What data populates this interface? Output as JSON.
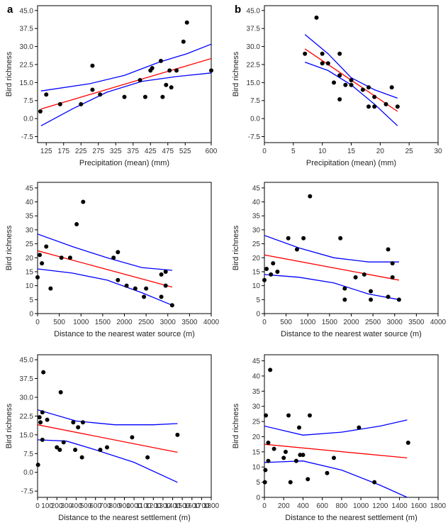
{
  "colors": {
    "fit": "#ff0000",
    "ci": "#0000ff",
    "points": "#000000",
    "frame": "#000000"
  },
  "chart_data": [
    {
      "panel_label": "a",
      "type": "scatter",
      "xlabel": "Precipitation (mean) (mm)",
      "ylabel": "Bird richness",
      "xlim": [
        100,
        600
      ],
      "ylim": [
        -10,
        47
      ],
      "xticks": [
        125,
        175,
        225,
        275,
        325,
        375,
        425,
        475,
        525,
        600
      ],
      "xtick_labels": [
        "125",
        "175",
        "225",
        "275",
        "325",
        "375",
        "425",
        "475",
        "525",
        "600"
      ],
      "yticks": [
        -7.5,
        0,
        7.5,
        15,
        22.5,
        30,
        37.5,
        45
      ],
      "ytick_labels": [
        "-7.5",
        "0.0",
        "7.5",
        "15.0",
        "22.5",
        "30.0",
        "37.5",
        "45.0"
      ],
      "points": [
        [
          108,
          3
        ],
        [
          125,
          10
        ],
        [
          165,
          6
        ],
        [
          225,
          6
        ],
        [
          258,
          22
        ],
        [
          258,
          12
        ],
        [
          280,
          10
        ],
        [
          350,
          9
        ],
        [
          395,
          16
        ],
        [
          410,
          9
        ],
        [
          425,
          20
        ],
        [
          430,
          21
        ],
        [
          455,
          24
        ],
        [
          460,
          9
        ],
        [
          470,
          14
        ],
        [
          485,
          13
        ],
        [
          480,
          20
        ],
        [
          500,
          20
        ],
        [
          520,
          32
        ],
        [
          530,
          40
        ],
        [
          600,
          20
        ]
      ],
      "fit": [
        [
          110,
          4
        ],
        [
          600,
          25
        ]
      ],
      "ci_upper": [
        [
          110,
          11.5
        ],
        [
          250,
          14.5
        ],
        [
          350,
          18
        ],
        [
          450,
          23.5
        ],
        [
          530,
          27
        ],
        [
          600,
          31
        ]
      ],
      "ci_lower": [
        [
          110,
          -3
        ],
        [
          200,
          4
        ],
        [
          300,
          11
        ],
        [
          400,
          15.5
        ],
        [
          500,
          17.5
        ],
        [
          600,
          19
        ]
      ]
    },
    {
      "panel_label": "b",
      "type": "scatter",
      "xlabel": "Precipitation (mean) (mm)",
      "ylabel": "Bird richness",
      "xlim": [
        0,
        30
      ],
      "ylim": [
        -10,
        47
      ],
      "xticks": [
        0,
        5,
        10,
        15,
        20,
        25,
        30
      ],
      "xtick_labels": [
        "0",
        "5",
        "10",
        "15",
        "20",
        "25",
        "30"
      ],
      "yticks": [
        -7.5,
        0,
        7.5,
        15,
        22.5,
        30,
        37.5,
        45
      ],
      "ytick_labels": [
        "-7.5",
        "0.0",
        "7.5",
        "15.0",
        "22.5",
        "30.0",
        "37.5",
        "45.0"
      ],
      "points": [
        [
          7,
          27
        ],
        [
          9,
          42
        ],
        [
          10,
          27
        ],
        [
          10,
          23
        ],
        [
          11,
          23
        ],
        [
          12,
          15
        ],
        [
          13,
          27
        ],
        [
          13,
          18
        ],
        [
          13,
          8
        ],
        [
          14,
          14
        ],
        [
          15,
          16
        ],
        [
          15,
          14
        ],
        [
          17,
          12
        ],
        [
          18,
          13
        ],
        [
          18,
          5
        ],
        [
          19,
          9
        ],
        [
          19,
          5
        ],
        [
          21,
          6
        ],
        [
          22,
          13
        ],
        [
          23,
          5
        ]
      ],
      "fit": [
        [
          7,
          29
        ],
        [
          23,
          3
        ]
      ],
      "ci_upper": [
        [
          7,
          35
        ],
        [
          11,
          27
        ],
        [
          15,
          17
        ],
        [
          19,
          12
        ],
        [
          23,
          8.5
        ]
      ],
      "ci_lower": [
        [
          7,
          23.5
        ],
        [
          11,
          20
        ],
        [
          15,
          14
        ],
        [
          19,
          6
        ],
        [
          23,
          -3
        ]
      ]
    },
    {
      "panel_label": "",
      "type": "scatter",
      "xlabel": "Distance to the nearest water source (m)",
      "ylabel": "Bird richness",
      "xlim": [
        0,
        4000
      ],
      "ylim": [
        0,
        47
      ],
      "xticks": [
        0,
        500,
        1000,
        1500,
        2000,
        2500,
        3000,
        3500,
        4000
      ],
      "xtick_labels": [
        "0",
        "500",
        "1000",
        "1500",
        "2000",
        "2500",
        "3000",
        "3500",
        "4000"
      ],
      "yticks": [
        0,
        5,
        10,
        15,
        20,
        25,
        30,
        35,
        40,
        45
      ],
      "ytick_labels": [
        "0",
        "5",
        "10",
        "15",
        "20",
        "25",
        "30",
        "35",
        "40",
        "45"
      ],
      "points": [
        [
          0,
          13
        ],
        [
          50,
          21
        ],
        [
          100,
          18
        ],
        [
          200,
          24
        ],
        [
          300,
          9
        ],
        [
          550,
          20
        ],
        [
          750,
          20
        ],
        [
          900,
          32
        ],
        [
          1050,
          40
        ],
        [
          1750,
          20
        ],
        [
          1850,
          22
        ],
        [
          1850,
          12
        ],
        [
          2050,
          10
        ],
        [
          2250,
          9
        ],
        [
          2500,
          9
        ],
        [
          2450,
          6
        ],
        [
          2850,
          6
        ],
        [
          2850,
          14
        ],
        [
          2950,
          15
        ],
        [
          2950,
          10
        ],
        [
          3100,
          3
        ]
      ],
      "fit": [
        [
          0,
          22.5
        ],
        [
          3100,
          9.5
        ]
      ],
      "ci_upper": [
        [
          0,
          28.5
        ],
        [
          800,
          24
        ],
        [
          1600,
          20
        ],
        [
          2400,
          16.5
        ],
        [
          3100,
          15.5
        ]
      ],
      "ci_lower": [
        [
          0,
          16
        ],
        [
          800,
          14.5
        ],
        [
          1600,
          12
        ],
        [
          2400,
          7.5
        ],
        [
          3100,
          3
        ]
      ]
    },
    {
      "panel_label": "",
      "type": "scatter",
      "xlabel": "Distance to the nearest water source (m)",
      "ylabel": "Bird richness",
      "xlim": [
        0,
        4000
      ],
      "ylim": [
        0,
        47
      ],
      "xticks": [
        0,
        500,
        1000,
        1500,
        2000,
        2500,
        3000,
        3500,
        4000
      ],
      "xtick_labels": [
        "0",
        "500",
        "1000",
        "1500",
        "2000",
        "2500",
        "3000",
        "3500",
        "4000"
      ],
      "yticks": [
        0,
        5,
        10,
        15,
        20,
        25,
        30,
        35,
        40,
        45
      ],
      "ytick_labels": [
        "0",
        "5",
        "10",
        "15",
        "20",
        "25",
        "30",
        "35",
        "40",
        "45"
      ],
      "points": [
        [
          0,
          12
        ],
        [
          50,
          16
        ],
        [
          150,
          14
        ],
        [
          200,
          18
        ],
        [
          300,
          15
        ],
        [
          550,
          27
        ],
        [
          750,
          23
        ],
        [
          900,
          27
        ],
        [
          1050,
          42
        ],
        [
          1750,
          27
        ],
        [
          1850,
          5
        ],
        [
          1850,
          9
        ],
        [
          2100,
          13
        ],
        [
          2300,
          14
        ],
        [
          2450,
          5
        ],
        [
          2450,
          8
        ],
        [
          2850,
          6
        ],
        [
          2850,
          23
        ],
        [
          2950,
          18
        ],
        [
          2950,
          13
        ],
        [
          3100,
          5
        ]
      ],
      "fit": [
        [
          0,
          21
        ],
        [
          3100,
          12
        ]
      ],
      "ci_upper": [
        [
          0,
          28
        ],
        [
          800,
          23.5
        ],
        [
          1600,
          20
        ],
        [
          2400,
          18.5
        ],
        [
          3100,
          18.5
        ]
      ],
      "ci_lower": [
        [
          0,
          14
        ],
        [
          800,
          13
        ],
        [
          1600,
          11
        ],
        [
          2400,
          7
        ],
        [
          3100,
          5
        ]
      ]
    },
    {
      "panel_label": "",
      "type": "scatter",
      "xlabel": "Distance to the nearest settlement (m)",
      "ylabel": "Bird richness",
      "xlim": [
        0,
        1800
      ],
      "ylim": [
        -10,
        47
      ],
      "xticks": [
        0,
        100,
        200,
        300,
        400,
        500,
        600,
        700,
        800,
        900,
        1000,
        1100,
        1200,
        1300,
        1400,
        1500,
        1600,
        1700,
        1800
      ],
      "xtick_labels": [
        "0",
        "100",
        "200",
        "300",
        "400",
        "500",
        "600",
        "700",
        "800",
        "900",
        "1000",
        "1100",
        "1200",
        "1300",
        "1400",
        "1500",
        "1600",
        "1700",
        "1800"
      ],
      "yticks": [
        -7.5,
        0,
        7.5,
        15,
        22.5,
        30,
        37.5,
        45
      ],
      "ytick_labels": [
        "-7.5",
        "0.0",
        "7.5",
        "15.0",
        "22.5",
        "30.0",
        "37.5",
        "45.0"
      ],
      "points": [
        [
          5,
          3
        ],
        [
          20,
          22
        ],
        [
          30,
          20
        ],
        [
          50,
          24
        ],
        [
          60,
          40
        ],
        [
          50,
          13
        ],
        [
          100,
          21
        ],
        [
          200,
          10
        ],
        [
          230,
          9
        ],
        [
          240,
          32
        ],
        [
          270,
          12
        ],
        [
          370,
          20
        ],
        [
          390,
          9
        ],
        [
          420,
          18
        ],
        [
          470,
          20
        ],
        [
          460,
          6
        ],
        [
          650,
          9
        ],
        [
          720,
          10
        ],
        [
          980,
          14
        ],
        [
          1140,
          6
        ],
        [
          1450,
          15
        ]
      ],
      "fit": [
        [
          0,
          19
        ],
        [
          1450,
          8
        ]
      ],
      "ci_upper": [
        [
          0,
          25
        ],
        [
          400,
          20.5
        ],
        [
          800,
          19
        ],
        [
          1200,
          19
        ],
        [
          1450,
          19.5
        ]
      ],
      "ci_lower": [
        [
          0,
          13
        ],
        [
          300,
          12.5
        ],
        [
          600,
          9
        ],
        [
          1000,
          4
        ],
        [
          1450,
          -4
        ]
      ]
    },
    {
      "panel_label": "",
      "type": "scatter",
      "xlabel": "Distance to the nearest settlement (m)",
      "ylabel": "Bird richness",
      "xlim": [
        0,
        1800
      ],
      "ylim": [
        0,
        47
      ],
      "xticks": [
        0,
        200,
        400,
        600,
        800,
        1000,
        1200,
        1400,
        1600,
        1800
      ],
      "xtick_labels": [
        "0",
        "200",
        "400",
        "600",
        "800",
        "1000",
        "1200",
        "1400",
        "1600",
        "1800"
      ],
      "yticks": [
        0,
        5,
        10,
        15,
        20,
        25,
        30,
        35,
        40,
        45
      ],
      "ytick_labels": [
        "0",
        "5",
        "10",
        "15",
        "20",
        "25",
        "30",
        "35",
        "40",
        "45"
      ],
      "points": [
        [
          5,
          5
        ],
        [
          10,
          9
        ],
        [
          15,
          27
        ],
        [
          40,
          12
        ],
        [
          40,
          18
        ],
        [
          60,
          42
        ],
        [
          100,
          16
        ],
        [
          200,
          13
        ],
        [
          220,
          15
        ],
        [
          250,
          27
        ],
        [
          270,
          5
        ],
        [
          330,
          12
        ],
        [
          360,
          23
        ],
        [
          370,
          14
        ],
        [
          400,
          14
        ],
        [
          450,
          6
        ],
        [
          470,
          27
        ],
        [
          650,
          8
        ],
        [
          720,
          13
        ],
        [
          980,
          23
        ],
        [
          1140,
          5
        ],
        [
          1490,
          18
        ]
      ],
      "fit": [
        [
          0,
          17.5
        ],
        [
          1480,
          13
        ]
      ],
      "ci_upper": [
        [
          0,
          23.5
        ],
        [
          400,
          20.5
        ],
        [
          800,
          21.5
        ],
        [
          1200,
          23.5
        ],
        [
          1480,
          25.5
        ]
      ],
      "ci_lower": [
        [
          0,
          11.5
        ],
        [
          400,
          12
        ],
        [
          800,
          9
        ],
        [
          1200,
          4
        ],
        [
          1480,
          0
        ]
      ]
    }
  ]
}
